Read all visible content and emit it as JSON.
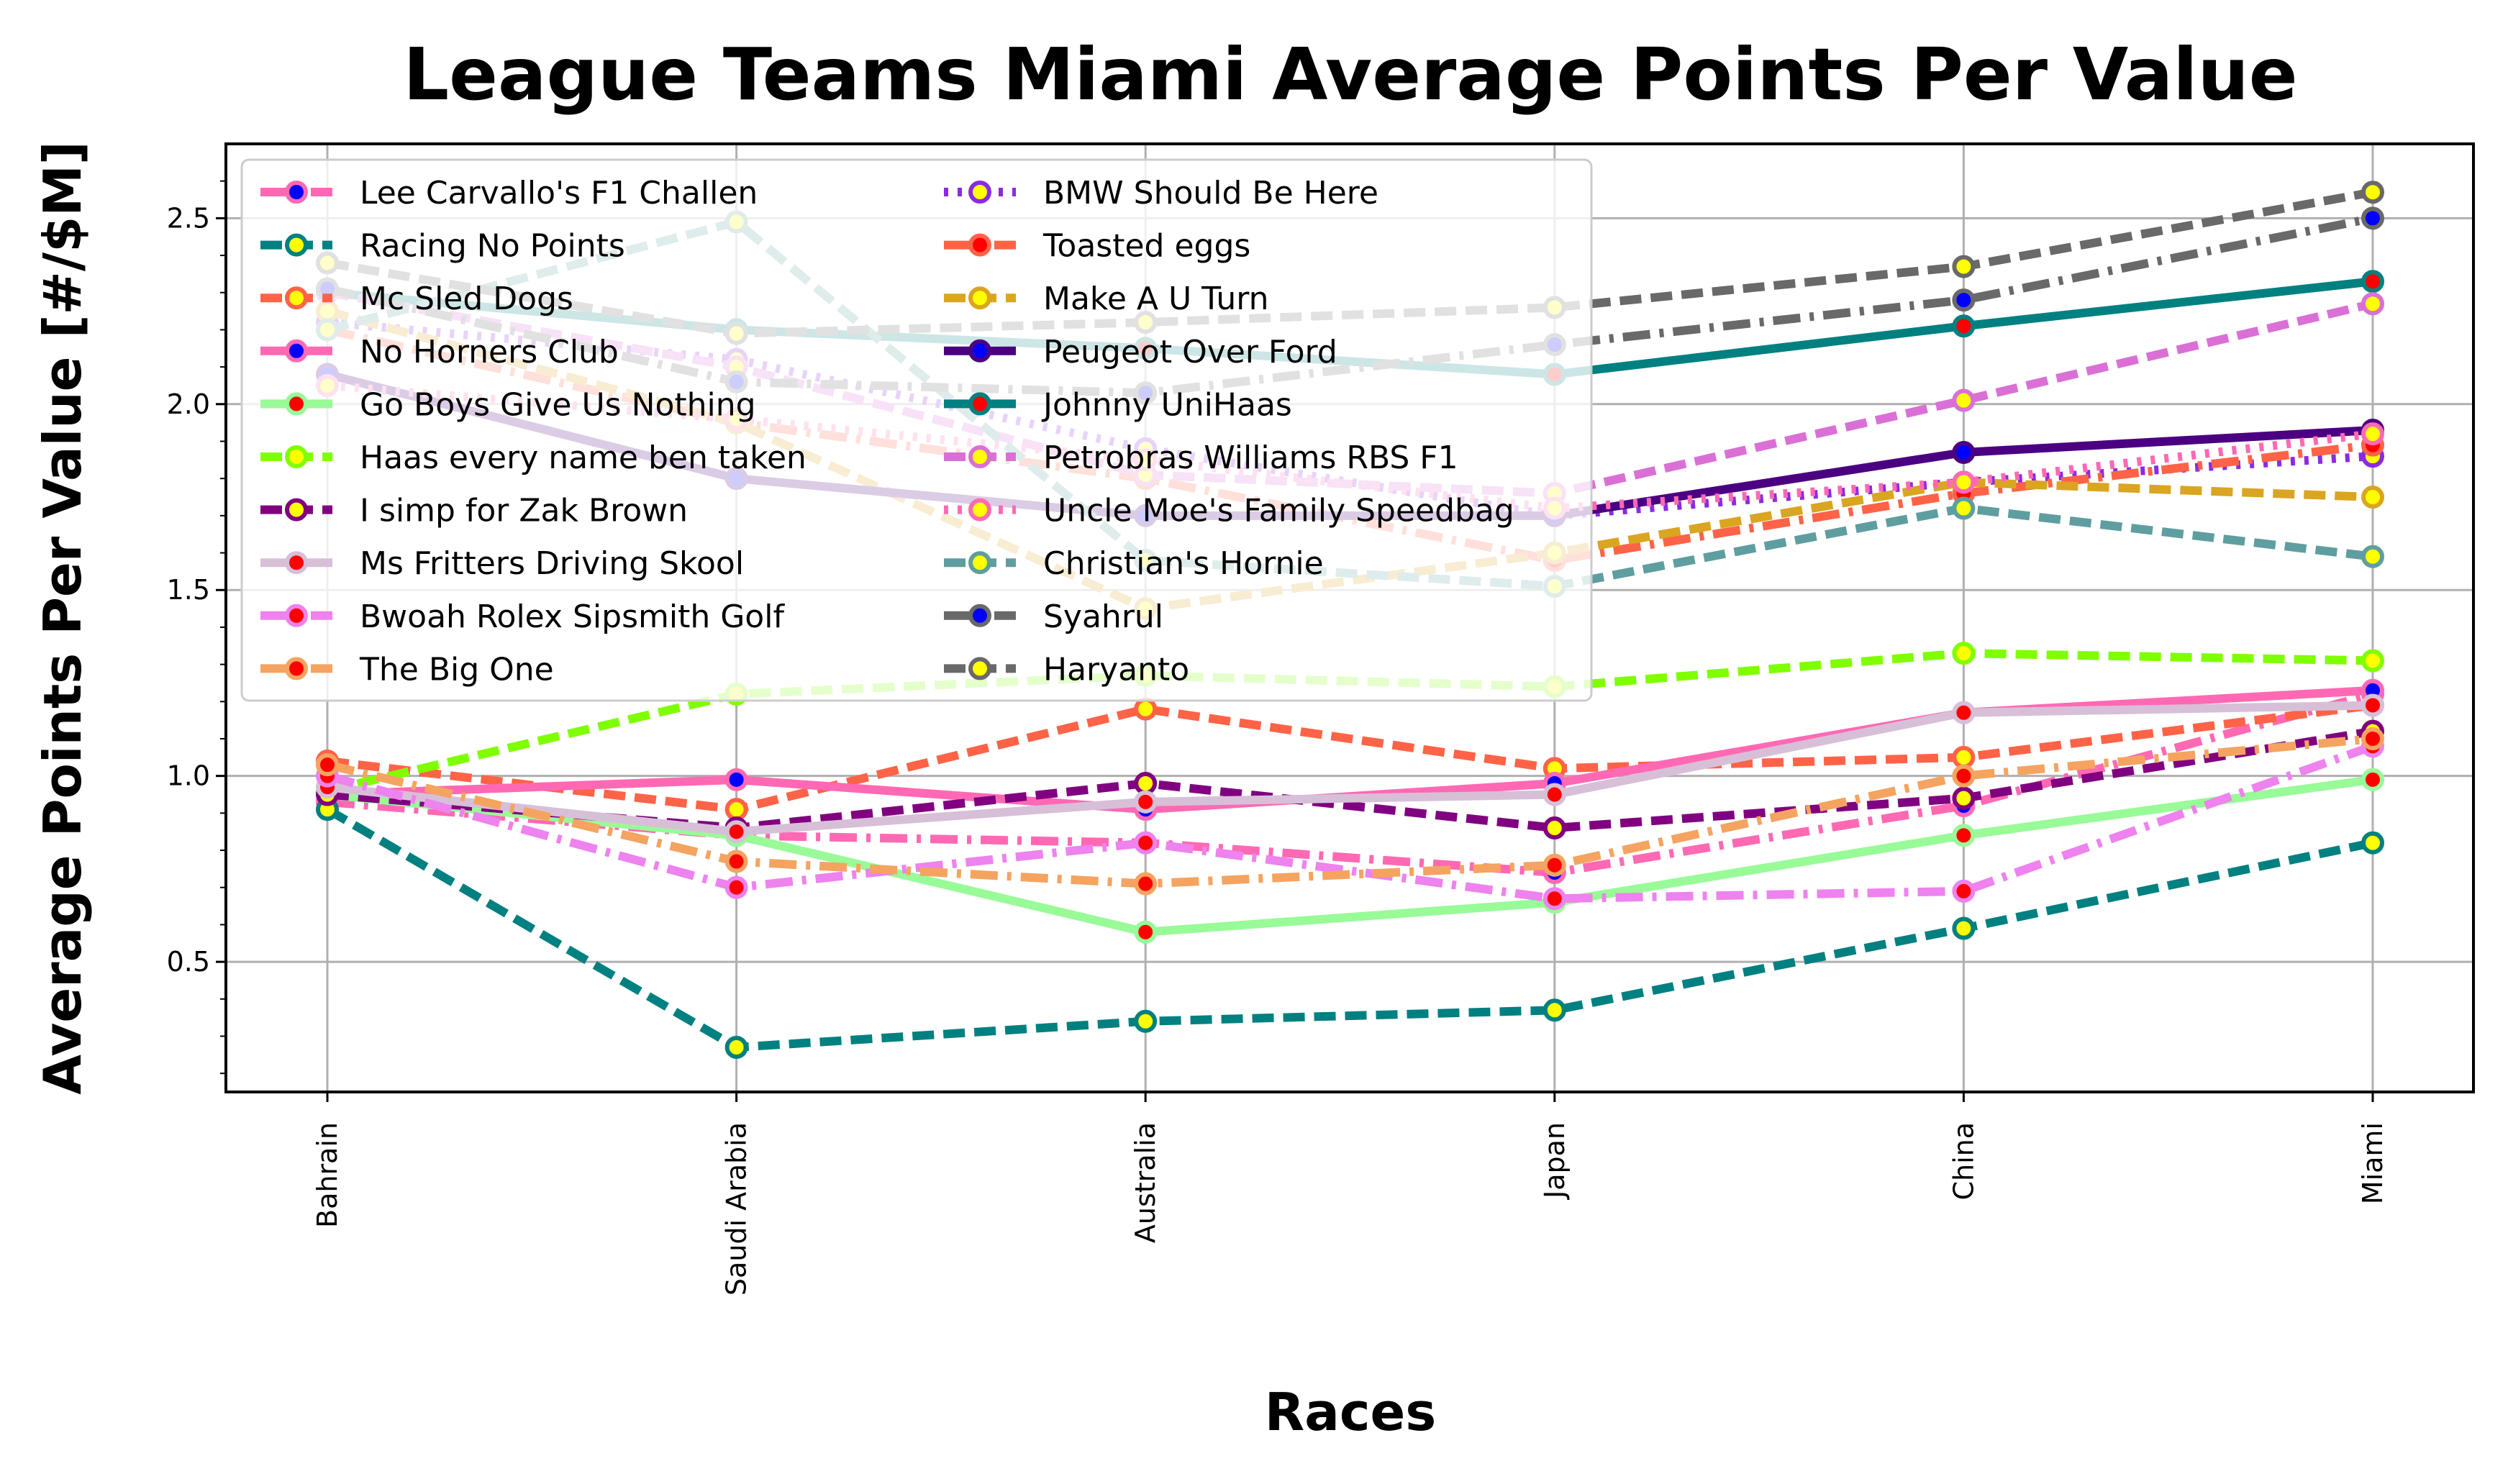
{
  "chart_data": {
    "type": "line",
    "title": "League Teams Miami Average Points Per Value",
    "xlabel": "Races",
    "ylabel": "Average Points Per Value [#/$M]",
    "categories": [
      "Bahrain",
      "Saudi Arabia",
      "Australia",
      "Japan",
      "China",
      "Miami"
    ],
    "ylim": [
      0.15,
      2.7
    ],
    "yticks": [
      "0.5",
      "1.0",
      "1.5",
      "2.0",
      "2.5"
    ],
    "grid": true,
    "legend_position": "upper-left",
    "legend_columns": 2,
    "series": [
      {
        "name": "Lee Carvallo's F1 Challen",
        "values": [
          0.93,
          0.84,
          0.82,
          0.74,
          0.92,
          1.22
        ],
        "color": "#ff69b4",
        "marker_face": "#0000ff",
        "marker_edge": "#ff69b4",
        "dash": "dashdot"
      },
      {
        "name": "Racing No Points",
        "values": [
          0.91,
          0.27,
          0.34,
          0.37,
          0.59,
          0.82
        ],
        "color": "#008080",
        "marker_face": "#ffff00",
        "marker_edge": "#008080",
        "dash": "dashed"
      },
      {
        "name": "Mc Sled Dogs",
        "values": [
          1.04,
          0.91,
          1.18,
          1.02,
          1.05,
          1.19
        ],
        "color": "#ff6347",
        "marker_face": "#ffff00",
        "marker_edge": "#ff6347",
        "dash": "dashed"
      },
      {
        "name": "No Horners Club",
        "values": [
          0.95,
          0.99,
          0.91,
          0.98,
          1.17,
          1.23
        ],
        "color": "#ff69b4",
        "marker_face": "#0000ff",
        "marker_edge": "#ff69b4",
        "dash": "solid"
      },
      {
        "name": "Go Boys Give Us Nothing",
        "values": [
          0.95,
          0.84,
          0.58,
          0.66,
          0.84,
          0.99
        ],
        "color": "#98fb98",
        "marker_face": "#ff0000",
        "marker_edge": "#98fb98",
        "dash": "solid"
      },
      {
        "name": "Haas every name ben taken",
        "values": [
          0.96,
          1.22,
          1.27,
          1.24,
          1.33,
          1.31
        ],
        "color": "#7fff00",
        "marker_face": "#ffff00",
        "marker_edge": "#7fff00",
        "dash": "dashed"
      },
      {
        "name": "I simp for Zak Brown",
        "values": [
          0.95,
          0.86,
          0.98,
          0.86,
          0.94,
          1.12
        ],
        "color": "#800080",
        "marker_face": "#ffff00",
        "marker_edge": "#800080",
        "dash": "dashed"
      },
      {
        "name": "Ms Fritters Driving Skool",
        "values": [
          0.97,
          0.85,
          0.93,
          0.95,
          1.17,
          1.19
        ],
        "color": "#d8bfd8",
        "marker_face": "#ff0000",
        "marker_edge": "#d8bfd8",
        "dash": "solid"
      },
      {
        "name": "Bwoah Rolex Sipsmith Golf",
        "values": [
          1.0,
          0.7,
          0.82,
          0.67,
          0.69,
          1.08
        ],
        "color": "#ee82ee",
        "marker_face": "#ff0000",
        "marker_edge": "#ee82ee",
        "dash": "dashdot"
      },
      {
        "name": "The Big One",
        "values": [
          1.03,
          0.77,
          0.71,
          0.76,
          1.0,
          1.1
        ],
        "color": "#f4a460",
        "marker_face": "#ff0000",
        "marker_edge": "#f4a460",
        "dash": "dashdot"
      },
      {
        "name": "BMW Should Be Here",
        "values": [
          2.22,
          2.12,
          1.88,
          1.7,
          1.79,
          1.86
        ],
        "color": "#8a2be2",
        "marker_face": "#ffff00",
        "marker_edge": "#8a2be2",
        "dash": "dotted"
      },
      {
        "name": "Toasted eggs",
        "values": [
          2.2,
          1.95,
          1.8,
          1.58,
          1.76,
          1.89
        ],
        "color": "#ff6347",
        "marker_face": "#ff0000",
        "marker_edge": "#ff6347",
        "dash": "dashdot"
      },
      {
        "name": "Make A U Turn",
        "values": [
          2.25,
          1.95,
          1.45,
          1.6,
          1.79,
          1.75
        ],
        "color": "#daa520",
        "marker_face": "#ffff00",
        "marker_edge": "#daa520",
        "dash": "dashed"
      },
      {
        "name": "Peugeot Over Ford",
        "values": [
          2.08,
          1.8,
          1.7,
          1.7,
          1.87,
          1.93
        ],
        "color": "#4b0082",
        "marker_face": "#0000ff",
        "marker_edge": "#4b0082",
        "dash": "solid"
      },
      {
        "name": "Johnny UniHaas",
        "values": [
          2.3,
          2.2,
          2.15,
          2.08,
          2.21,
          2.33
        ],
        "color": "#008080",
        "marker_face": "#ff0000",
        "marker_edge": "#008080",
        "dash": "solid"
      },
      {
        "name": "Petrobras Williams RBS F1",
        "values": [
          2.3,
          2.1,
          1.81,
          1.76,
          2.01,
          2.27
        ],
        "color": "#da70d6",
        "marker_face": "#ffff00",
        "marker_edge": "#da70d6",
        "dash": "dashed"
      },
      {
        "name": "Uncle Moe's Family Speedbag",
        "values": [
          2.05,
          1.96,
          1.85,
          1.72,
          1.79,
          1.92
        ],
        "color": "#ff69b4",
        "marker_face": "#ffff00",
        "marker_edge": "#ff69b4",
        "dash": "dotted"
      },
      {
        "name": "Christian's Hornie",
        "values": [
          2.2,
          2.49,
          1.58,
          1.51,
          1.72,
          1.59
        ],
        "color": "#5f9ea0",
        "marker_face": "#ffff00",
        "marker_edge": "#5f9ea0",
        "dash": "dashed"
      },
      {
        "name": "Syahrul",
        "values": [
          2.31,
          2.06,
          2.03,
          2.16,
          2.28,
          2.5
        ],
        "color": "#696969",
        "marker_face": "#0000ff",
        "marker_edge": "#696969",
        "dash": "dashdot"
      },
      {
        "name": "Haryanto",
        "values": [
          2.38,
          2.19,
          2.22,
          2.26,
          2.37,
          2.57
        ],
        "color": "#696969",
        "marker_face": "#ffff00",
        "marker_edge": "#696969",
        "dash": "dashed"
      }
    ]
  }
}
